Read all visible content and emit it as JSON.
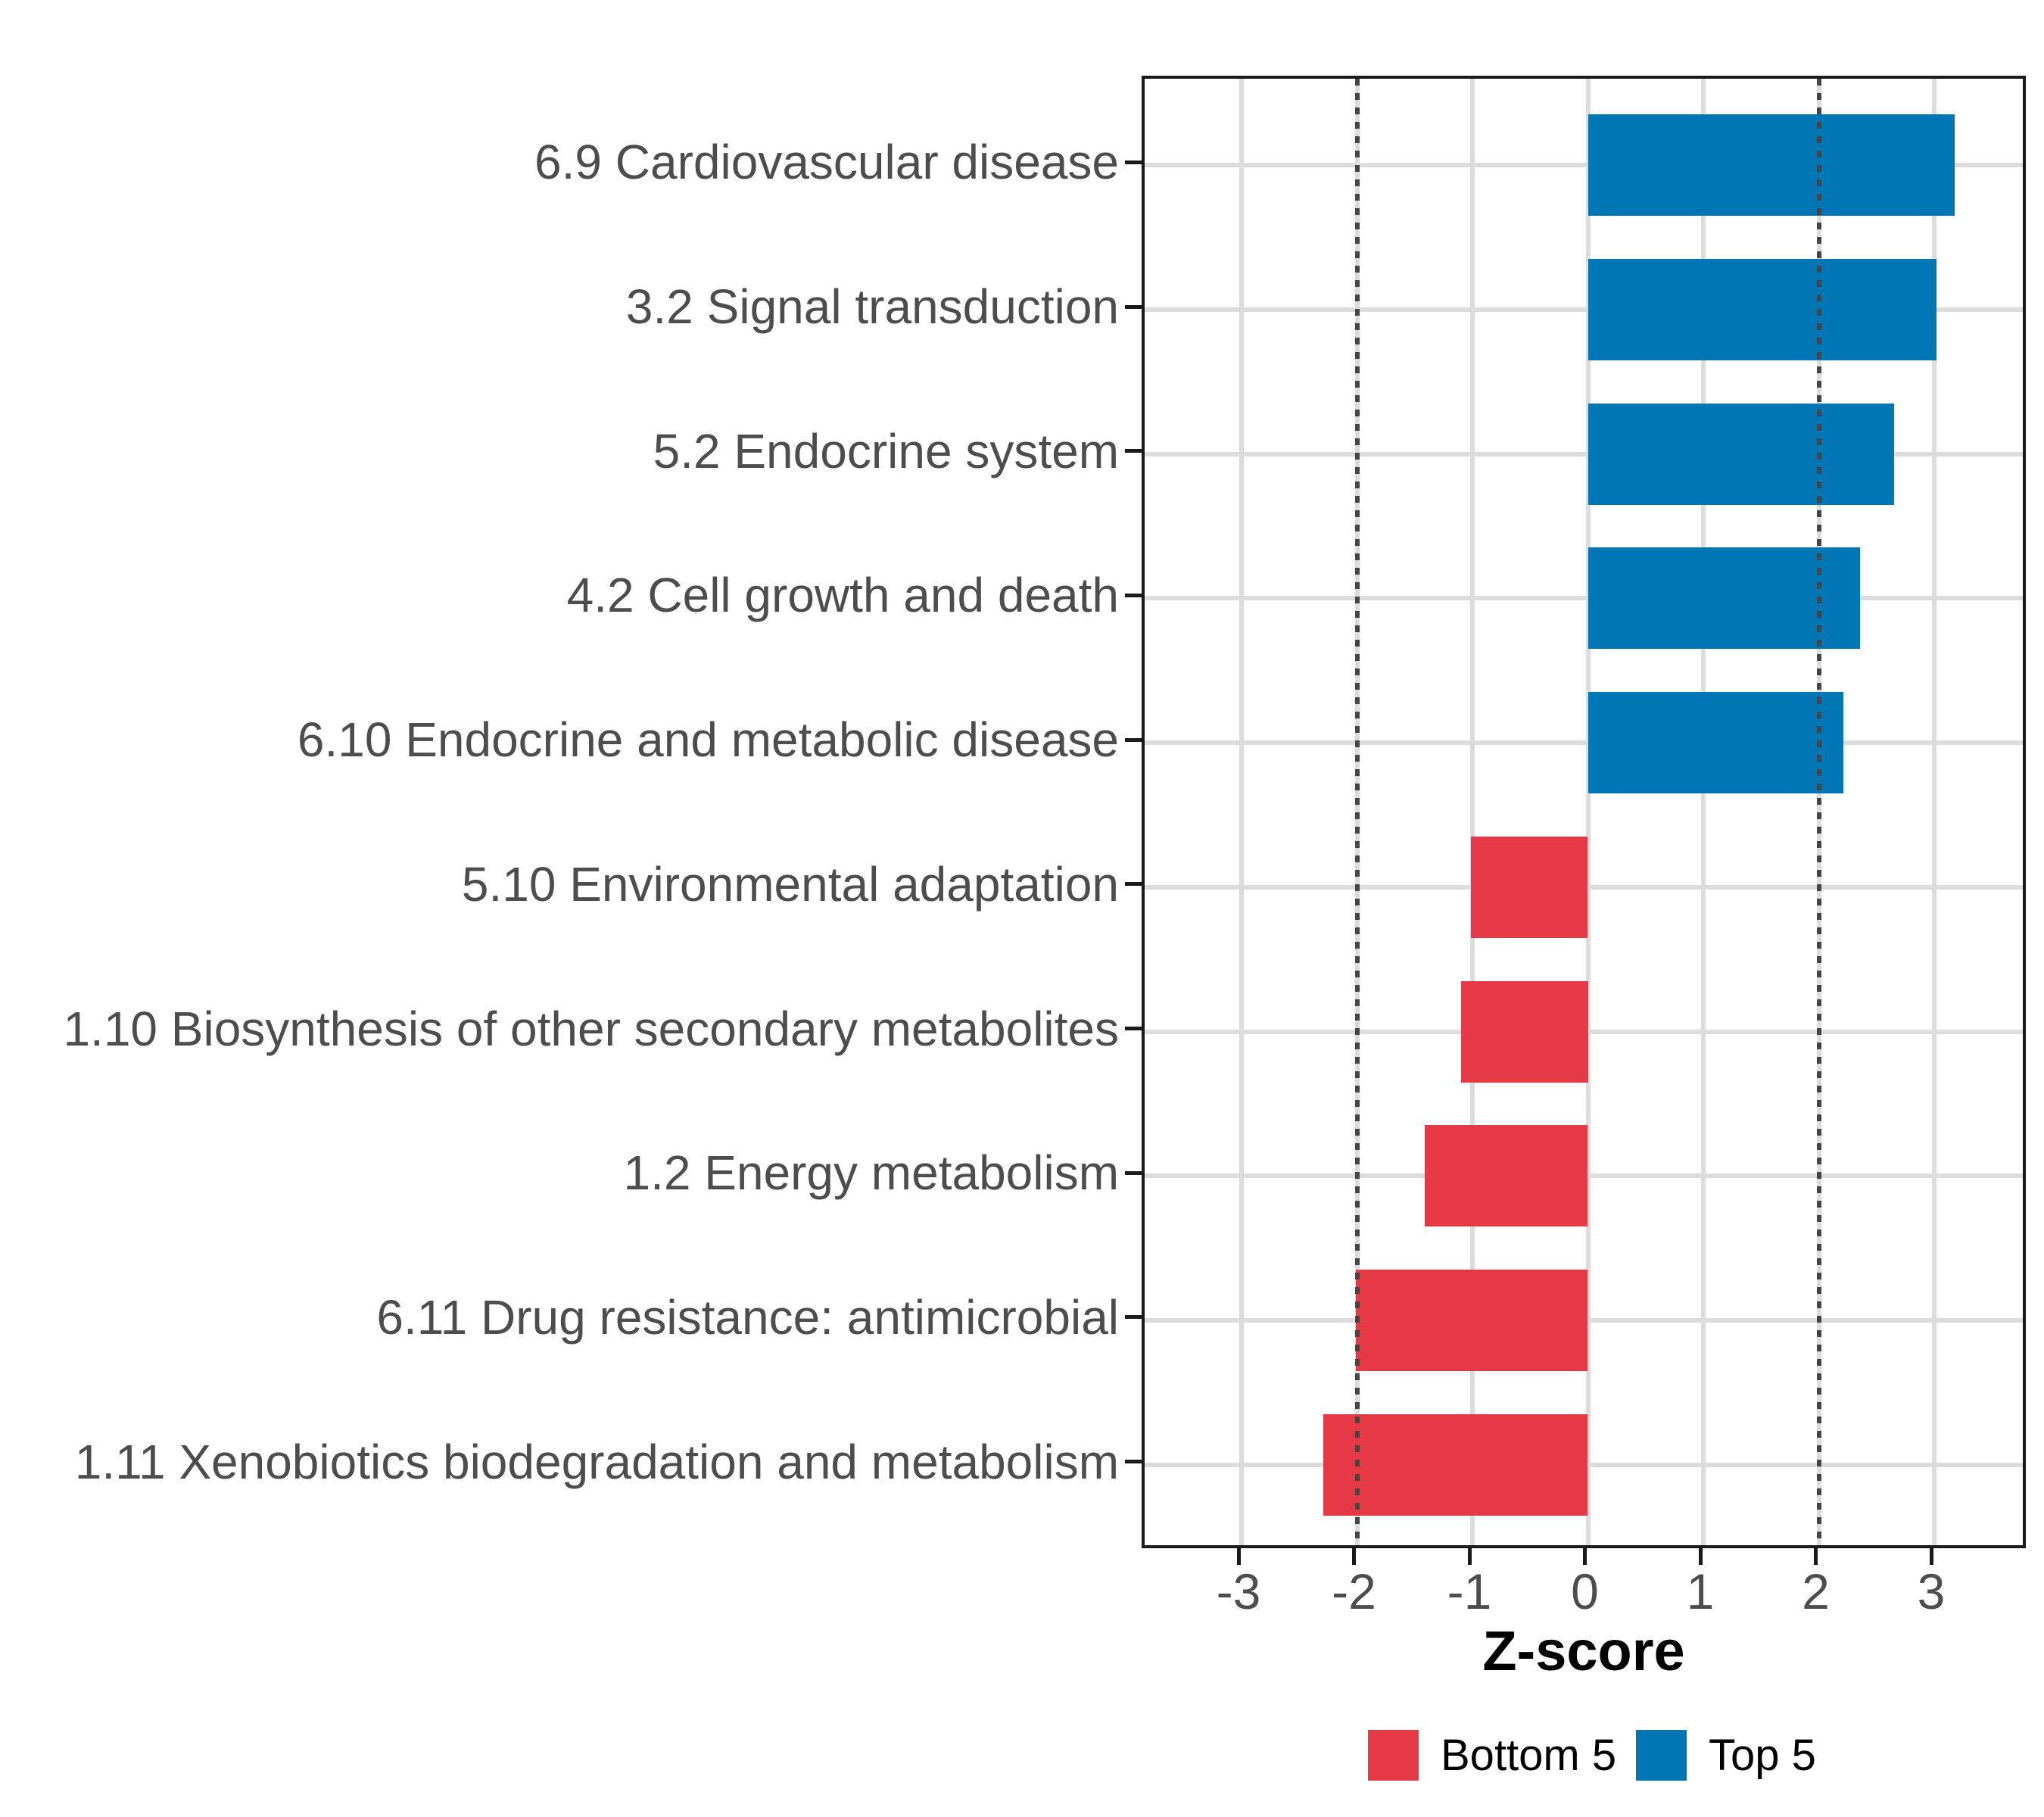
{
  "chart_data": {
    "type": "bar",
    "orientation": "horizontal",
    "title": "",
    "xlabel": "Z-score",
    "categories": [
      "6.9 Cardiovascular disease",
      "3.2 Signal transduction",
      "5.2 Endocrine system",
      "4.2 Cell growth and death",
      "6.10 Endocrine and metabolic disease",
      "5.10 Environmental adaptation",
      "1.10 Biosynthesis of other secondary metabolites",
      "1.2 Energy metabolism",
      "6.11 Drug resistance: antimicrobial",
      "1.11 Xenobiotics biodegradation and metabolism"
    ],
    "values": [
      3.18,
      3.02,
      2.65,
      2.36,
      2.21,
      -1.01,
      -1.1,
      -1.41,
      -2.01,
      -2.29
    ],
    "groups": [
      "Top 5",
      "Top 5",
      "Top 5",
      "Top 5",
      "Top 5",
      "Bottom 5",
      "Bottom 5",
      "Bottom 5",
      "Bottom 5",
      "Bottom 5"
    ],
    "x_ticks": [
      -3,
      -2,
      -1,
      0,
      1,
      2,
      3
    ],
    "x_tick_labels": [
      "-3",
      "-2",
      "-1",
      "0",
      "1",
      "2",
      "3"
    ],
    "xlim": [
      -3.84,
      3.83
    ],
    "reference_lines": [
      -2,
      2
    ],
    "grid": true,
    "legend_position": "bottom",
    "legend": [
      {
        "label": "Bottom 5",
        "color": "#e63946"
      },
      {
        "label": "Top 5",
        "color": "#0077b4"
      }
    ],
    "colors": {
      "Top 5": "#0077b4",
      "Bottom 5": "#e63946"
    }
  }
}
